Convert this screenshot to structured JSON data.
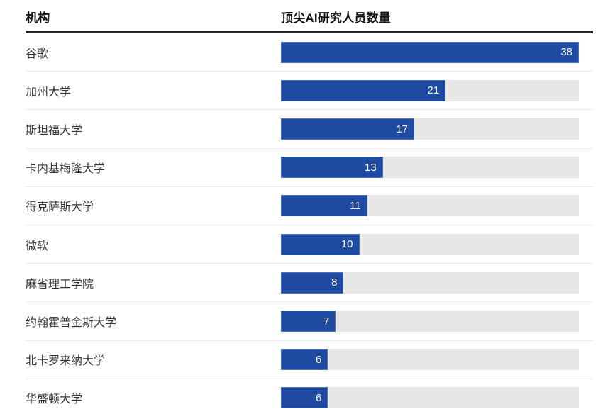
{
  "header": {
    "institution_col": "机构",
    "value_col": "顶尖AI研究人员数量"
  },
  "chart_data": {
    "type": "bar",
    "orientation": "horizontal",
    "title": "顶尖AI研究人员数量",
    "xlabel": "机构",
    "ylabel": "顶尖AI研究人员数量",
    "categories": [
      "谷歌",
      "加州大学",
      "斯坦福大学",
      "卡内基梅隆大学",
      "得克萨斯大学",
      "微软",
      "麻省理工学院",
      "约翰霍普金斯大学",
      "北卡罗来纳大学",
      "华盛顿大学"
    ],
    "values": [
      38,
      21,
      17,
      13,
      11,
      10,
      8,
      7,
      6,
      6
    ],
    "value_labels": [
      "38",
      "21",
      "17",
      "13",
      "11",
      "10",
      "8",
      "7",
      "6",
      "6"
    ],
    "axis_range": [
      0,
      38
    ],
    "grid": false,
    "legend": false,
    "data_labels_position": "inside-end",
    "colors": {
      "bar": "#1e4ba1",
      "track": "#e7e7e5",
      "value_label": "#ffffff",
      "header_divider": "#222326",
      "row_divider": "#ececea",
      "category_text": "#333333",
      "header_text": "#111111"
    }
  }
}
